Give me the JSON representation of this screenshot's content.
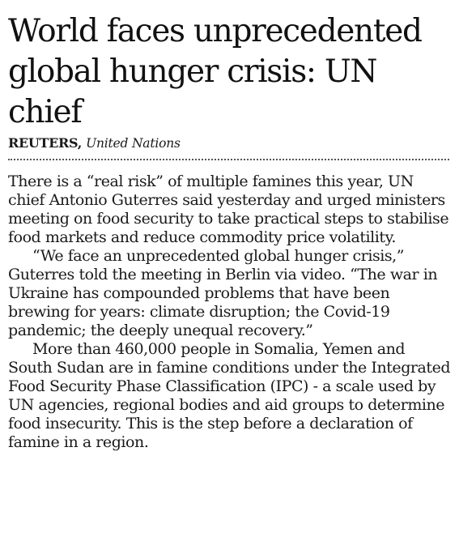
{
  "article": {
    "headline": "World faces unprecedented global hunger crisis: UN chief",
    "byline": {
      "agency": "REUTERS,",
      "location": "United Nations"
    },
    "paragraphs": [
      "There is a “real risk” of multiple famines this year, UN chief Antonio Guterres said yesterday and urged ministers meeting on food security to take practical steps to stabilise food markets and reduce commodity price volatility.",
      "“We face an unprecedented global hunger crisis,” Guterres told the meeting in Berlin via video. “The war in Ukraine has compounded problems that have been brewing for years: climate disruption; the Covid-19 pandemic; the deeply unequal recovery.”",
      "More than 460,000 people in Somalia, Yemen and South Sudan are in famine conditions under the Integrated Food Security Phase Classification (IPC) - a scale used by UN agencies, regional bodies and aid groups to determine food insecurity. This is the step before a declaration of famine in a region."
    ]
  }
}
